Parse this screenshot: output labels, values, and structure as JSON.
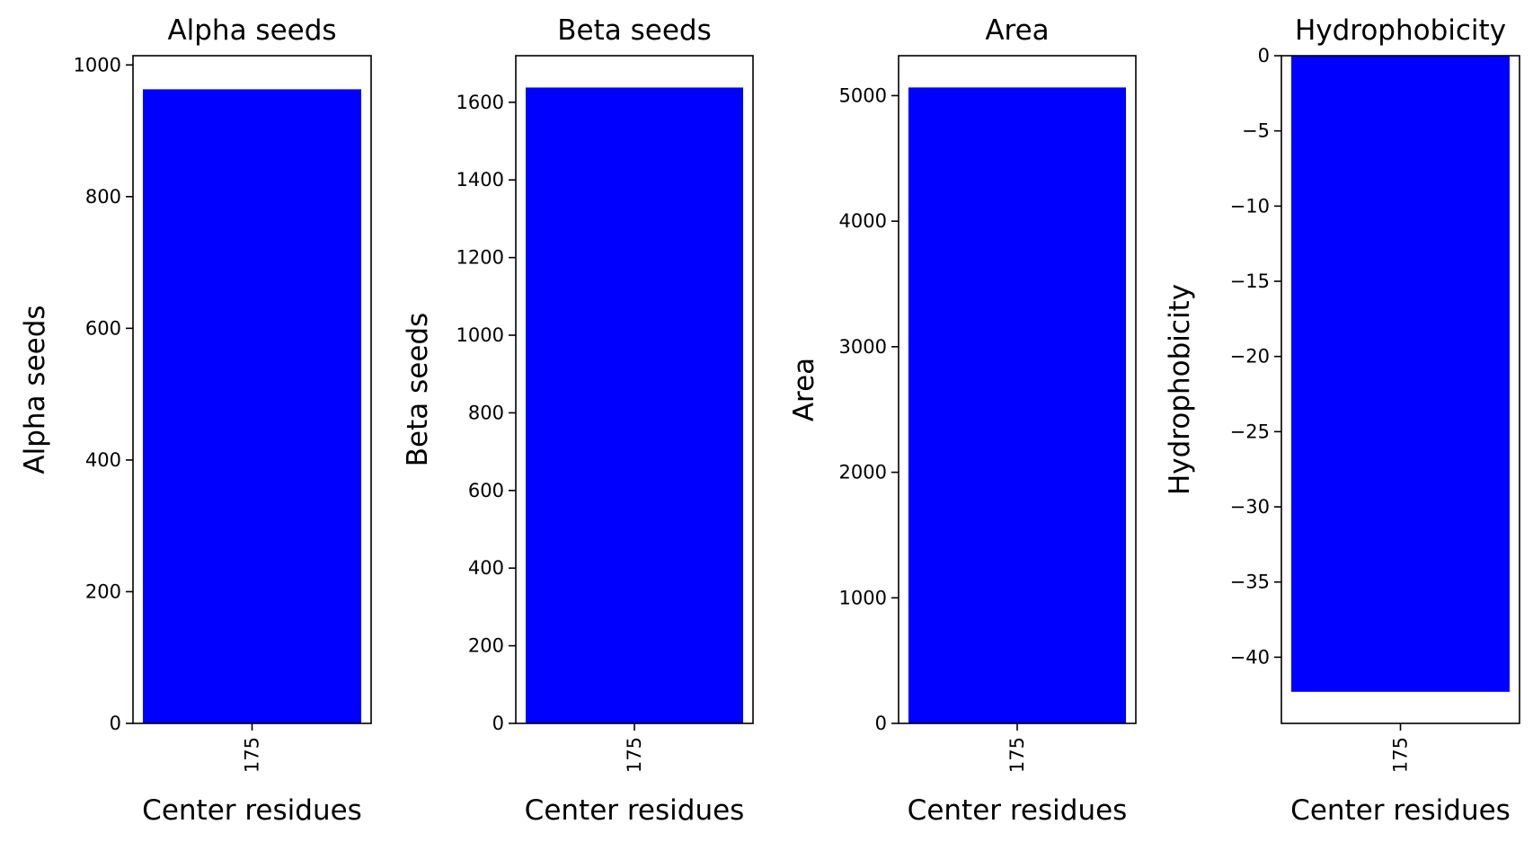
{
  "chart_data": [
    {
      "type": "bar",
      "title": "Alpha seeds",
      "xlabel": "Center residues",
      "ylabel": "Alpha seeds",
      "categories": [
        "175"
      ],
      "values": [
        963
      ],
      "ylim": [
        0,
        1014
      ],
      "yticks": [
        0,
        200,
        400,
        600,
        800,
        1000
      ],
      "grid": false,
      "bar_color": "#0000ff"
    },
    {
      "type": "bar",
      "title": "Beta seeds",
      "xlabel": "Center residues",
      "ylabel": "Beta seeds",
      "categories": [
        "175"
      ],
      "values": [
        1638
      ],
      "ylim": [
        0,
        1720
      ],
      "yticks": [
        0,
        200,
        400,
        600,
        800,
        1000,
        1200,
        1400,
        1600
      ],
      "grid": false,
      "bar_color": "#0000ff"
    },
    {
      "type": "bar",
      "title": "Area",
      "xlabel": "Center residues",
      "ylabel": "Area",
      "categories": [
        "175"
      ],
      "values": [
        5065
      ],
      "ylim": [
        0,
        5318
      ],
      "yticks": [
        0,
        1000,
        2000,
        3000,
        4000,
        5000
      ],
      "grid": false,
      "bar_color": "#0000ff"
    },
    {
      "type": "bar",
      "title": "Hydrophobicity",
      "xlabel": "Center residues",
      "ylabel": "Hydrophobicity",
      "categories": [
        "175"
      ],
      "values": [
        -42.3
      ],
      "ylim": [
        -44.4,
        0
      ],
      "yticks": [
        0,
        -5,
        -10,
        -15,
        -20,
        -25,
        -30,
        -35,
        -40
      ],
      "ytick_labels": [
        "0",
        "−5",
        "−10",
        "−15",
        "−20",
        "−25",
        "−30",
        "−35",
        "−40"
      ],
      "grid": false,
      "bar_color": "#0000ff"
    }
  ]
}
